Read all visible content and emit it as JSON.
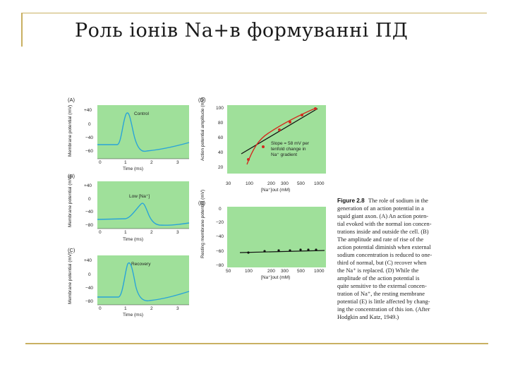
{
  "slide": {
    "title": "Роль іонів Na+в формуванні ПД"
  },
  "figure": {
    "panels": {
      "A": {
        "letter": "(A)",
        "label": "Control",
        "ylabel": "Membrane potential (mV)",
        "yticks": [
          "+40",
          "0",
          "−40",
          "−60"
        ],
        "xticks": [
          "0",
          "1",
          "2",
          "3"
        ],
        "xlabel": "Time (ms)"
      },
      "B": {
        "letter": "(B)",
        "label": "Low [Na⁺]",
        "ylabel": "Membrane potential (mV)",
        "yticks": [
          "+40",
          "0",
          "−40",
          "−80"
        ],
        "xticks": [
          "0",
          "1",
          "2",
          "3"
        ],
        "xlabel": "Time (ms)"
      },
      "C": {
        "letter": "(C)",
        "label": "Recovery",
        "ylabel": "Membrane potential (mV)",
        "yticks": [
          "+40",
          "0",
          "−40",
          "−80"
        ],
        "xticks": [
          "0",
          "1",
          "2",
          "3"
        ],
        "xlabel": "Time (ms)"
      },
      "D": {
        "letter": "(D)",
        "ylabel": "Action potential amplitude (mV)",
        "yticks": [
          "100",
          "80",
          "60",
          "40",
          "20"
        ],
        "xticks": [
          "30",
          "100",
          "200",
          "300",
          "500",
          "1000"
        ],
        "xlabel": "[Na⁺]out (mM)",
        "annotation_line1": "Slope = 58 mV per",
        "annotation_line2": "tenfold change in",
        "annotation_line3": "Na⁺ gradient"
      },
      "E": {
        "letter": "(E)",
        "ylabel": "Resting membrane potential (mV)",
        "yticks": [
          "0",
          "−20",
          "−40",
          "−60",
          "−80"
        ],
        "xticks": [
          "50",
          "100",
          "200",
          "300",
          "500",
          "1000"
        ],
        "xlabel": "[Na⁺]out (mM)"
      }
    },
    "caption": {
      "label": "Figure 2.8",
      "lines": [
        "The role of sodium in the",
        "generation of an action potential in a",
        "squid giant axon. (A) An action poten-",
        "tial evoked with the normal ion concen-",
        "trations inside and outside the cell. (B)",
        "The amplitude and rate of rise of the",
        "action potential diminish when external",
        "sodium concentration is reduced to one-",
        "third of normal, but (C) recover when",
        "the Na⁺ is replaced. (D) While the",
        "amplitude of the action potential is",
        "quite sensitive to the external concen-",
        "tration of Na⁺, the resting membrane",
        "potential (E) is little affected by chang-",
        "ing the concentration of this ion. (After",
        "Hodgkin and Katz, 1949.)"
      ]
    }
  },
  "colors": {
    "panel_bg": "#9fe09a",
    "trace": "#2aa4d8",
    "red": "#d42a1f",
    "rule": "#c9b062"
  }
}
